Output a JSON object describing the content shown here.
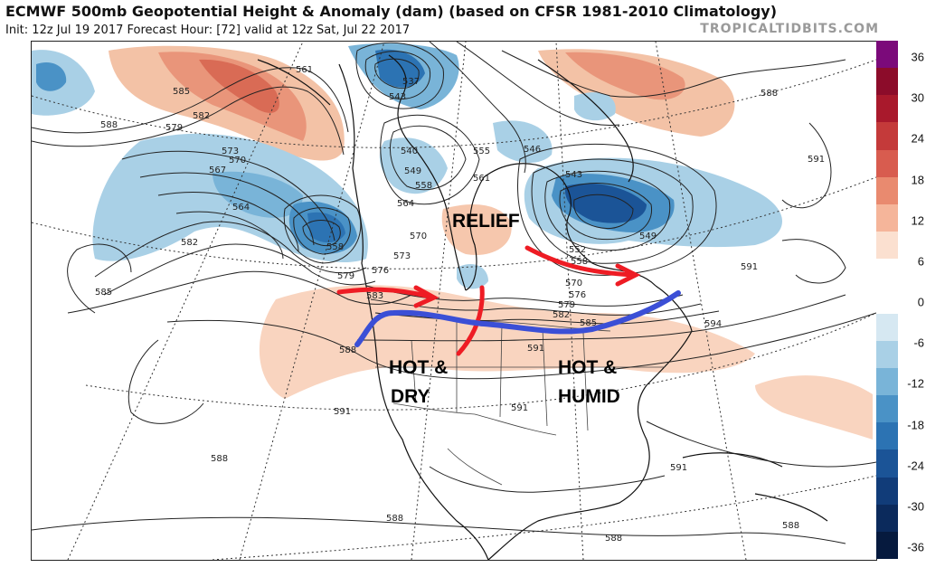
{
  "header": {
    "title": "ECMWF 500mb Geopotential Height & Anomaly (dam) (based on CFSR 1981-2010 Climatology)",
    "subtitle": "Init: 12z Jul 19 2017   Forecast Hour: [72]   valid at 12z Sat, Jul 22 2017",
    "brand": "TROPICALTIDBITS.COM"
  },
  "colorbar": {
    "ticks": [
      "36",
      "30",
      "24",
      "18",
      "12",
      "6",
      "0",
      "-6",
      "-12",
      "-18",
      "-24",
      "-30",
      "-36"
    ],
    "colors": [
      "#7b0a7a",
      "#8c0c2a",
      "#a9192c",
      "#c43a3a",
      "#d85c4f",
      "#e98a6f",
      "#f5b59a",
      "#fbe0d0",
      "#ffffff",
      "#ffffff",
      "#d6e8f2",
      "#a9d0e6",
      "#79b4d8",
      "#4a92c6",
      "#2c73b3",
      "#1b5497",
      "#113c79",
      "#0b2a5c",
      "#061a3e"
    ]
  },
  "annotations": {
    "relief": "RELIEF",
    "hot_dry_1": "HOT &",
    "hot_dry_2": "DRY",
    "hot_humid_1": "HOT &",
    "hot_humid_2": "HUMID"
  },
  "contour_labels": {
    "l561": "561",
    "l537": "537",
    "l543": "543",
    "l585a": "585",
    "l582a": "582",
    "l579a": "579",
    "l573a": "573",
    "l570a": "570",
    "l567": "567",
    "l564a": "564",
    "l558a": "558",
    "l582b": "582",
    "l585b": "585",
    "l588a": "588",
    "l540": "540",
    "l549a": "549",
    "l558b": "558",
    "l555": "555",
    "l564b": "564",
    "l561b": "561",
    "l570b": "570",
    "l573b": "573",
    "l579b": "579",
    "l576a": "576",
    "l583": "583",
    "l546": "546",
    "l543b": "543",
    "l552": "552",
    "l558c": "558",
    "l549b": "549",
    "l570c": "570",
    "l576b": "576",
    "l579c": "579",
    "l582c": "582",
    "l585c": "585",
    "l591a": "591",
    "l591b": "591",
    "l588b": "588",
    "l591c": "591",
    "l594": "594",
    "l588c": "588",
    "l591d": "591",
    "l591e": "591",
    "l588d": "588",
    "l588e": "588",
    "l588f": "588",
    "l588g": "588",
    "l591f": "591"
  },
  "arrows": {
    "red_color": "#ee1c24",
    "blue_color": "#3b4fd6"
  }
}
